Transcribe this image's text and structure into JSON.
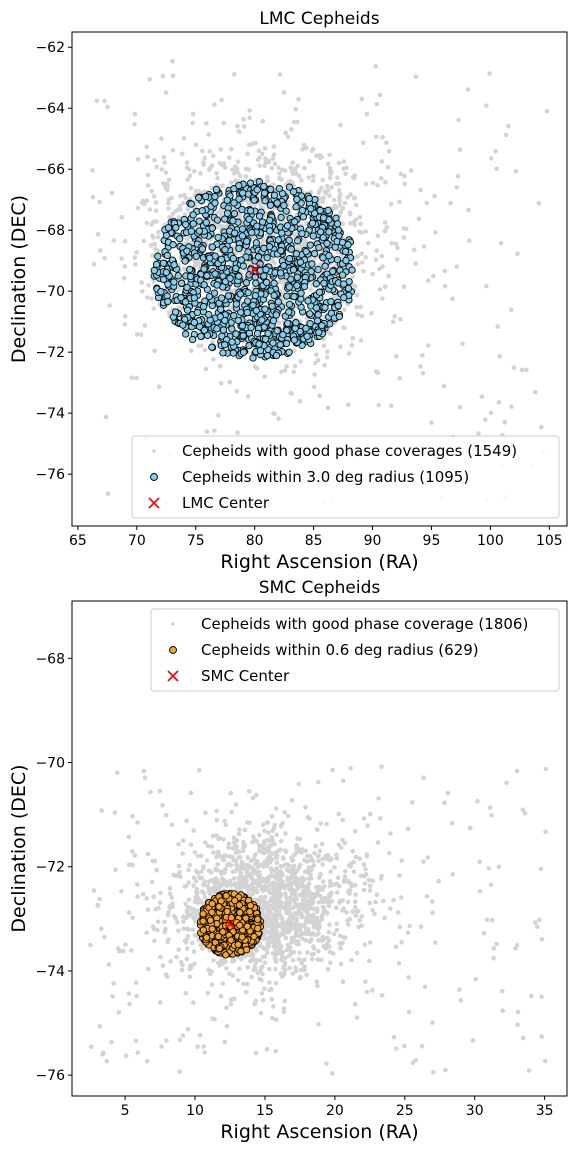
{
  "chart_data": [
    {
      "type": "scatter",
      "title": "LMC Cepheids",
      "xlabel": "Right Ascension (RA)",
      "ylabel": "Declination (DEC)",
      "xlim": [
        64.5,
        106.5
      ],
      "ylim": [
        -77.7,
        -61.5
      ],
      "xticks": [
        65,
        70,
        75,
        80,
        85,
        90,
        95,
        100,
        105
      ],
      "yticks": [
        -62,
        -64,
        -66,
        -68,
        -70,
        -72,
        -74,
        -76
      ],
      "legend_position": "lower-right",
      "center": {
        "x": 80.0,
        "y": -69.3
      },
      "series": [
        {
          "name": "Cepheids with good phase coverages (1549)",
          "color": "#d3d3d3",
          "count": 1549,
          "distribution": {
            "ra_range": [
              66,
              105
            ],
            "dec_range": [
              -77,
              -62.4
            ],
            "core_center": [
              80.5,
              -68.4
            ],
            "core_radius_ra": 9.0,
            "core_radius_dec": 3.0
          }
        },
        {
          "name": "Cepheids within 3.0 deg radius (1095)",
          "color": "#87ceeb",
          "edge": "#000000",
          "count": 1095,
          "distribution": {
            "center": [
              80.0,
              -69.3
            ],
            "radius_ra": 8.6,
            "radius_dec": 2.9
          }
        },
        {
          "name": "LMC Center",
          "color": "#ff0000",
          "marker": "x",
          "x": [
            80.0
          ],
          "y": [
            -69.3
          ]
        }
      ],
      "legend": [
        "Cepheids with good phase coverages (1549)",
        "Cepheids within 3.0 deg radius (1095)",
        "LMC Center"
      ]
    },
    {
      "type": "scatter",
      "title": "SMC Cepheids",
      "xlabel": "Right Ascension (RA)",
      "ylabel": "Declination (DEC)",
      "xlim": [
        1.2,
        36.6
      ],
      "ylim": [
        -76.4,
        -66.9
      ],
      "xticks": [
        5,
        10,
        15,
        20,
        25,
        30,
        35
      ],
      "yticks": [
        -68,
        -70,
        -72,
        -74,
        -76
      ],
      "legend_position": "top-right",
      "center": {
        "x": 12.5,
        "y": -73.1
      },
      "series": [
        {
          "name": "Cepheids with good phase coverage (1806)",
          "color": "#d3d3d3",
          "count": 1806,
          "distribution": {
            "ra_range": [
              2.5,
              35.3
            ],
            "dec_range": [
              -76.0,
              -70.0
            ],
            "core_center": [
              15.0,
              -72.7
            ],
            "core_radius_ra": 6.0,
            "core_radius_dec": 1.2
          }
        },
        {
          "name": "Cepheids within 0.6 deg radius (629)",
          "color": "#f5a623",
          "edge": "#000000",
          "count": 629,
          "distribution": {
            "center": [
              12.5,
              -73.1
            ],
            "radius_ra": 2.2,
            "radius_dec": 0.6
          }
        },
        {
          "name": "SMC Center",
          "color": "#ff0000",
          "marker": "x",
          "x": [
            12.5
          ],
          "y": [
            -73.1
          ]
        }
      ],
      "legend": [
        "Cepheids with good phase coverage (1806)",
        "Cepheids within 0.6 deg radius (629)",
        "SMC Center"
      ]
    }
  ]
}
